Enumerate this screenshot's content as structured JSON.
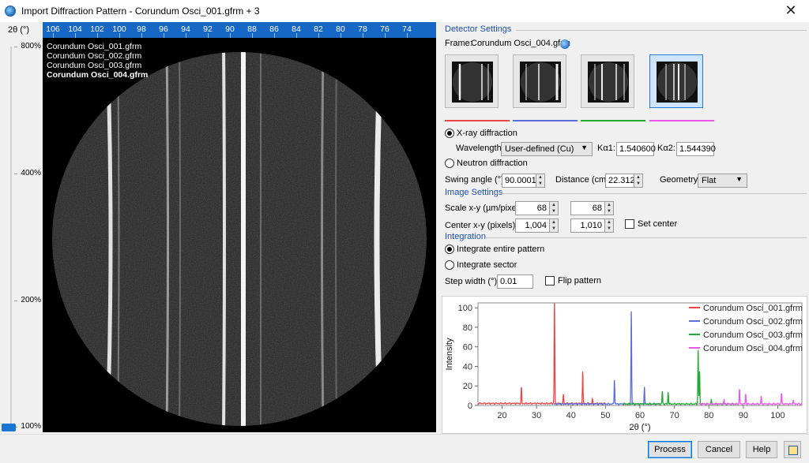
{
  "window": {
    "title": "Import Diffraction Pattern - Corundum Osci_001.gfrm + 3",
    "close": "✕"
  },
  "left_panel": {
    "angle_label": "2θ (°)",
    "zoom_ticks": [
      "800%",
      "400%",
      "200%",
      "100%"
    ],
    "ruler_ticks": [
      "106",
      "104",
      "102",
      "100",
      "98",
      "96",
      "94",
      "92",
      "90",
      "88",
      "86",
      "84",
      "82",
      "80",
      "78",
      "76",
      "74"
    ],
    "files": [
      "Corundum Osci_001.gfrm",
      "Corundum Osci_002.gfrm",
      "Corundum Osci_003.gfrm",
      "Corundum Osci_004.gfrm"
    ],
    "active_file_index": 3
  },
  "detector": {
    "section": "Detector Settings",
    "frame_label": "Frame:",
    "frame_name": "Corundum Osci_004.gfrm",
    "thumb_colors": [
      "#ee4444",
      "#5a6de0",
      "#22aa33",
      "#ee55ee"
    ],
    "selected_thumb": 3,
    "xray_label": "X-ray diffraction",
    "wavelength_label": "Wavelength:",
    "wavelength_value": "User-defined (Cu)",
    "ka1_label": "Kα1:",
    "ka1_value": "1.540600",
    "ka2_label": "Kα2:",
    "ka2_value": "1.544390",
    "neutron_label": "Neutron diffraction",
    "swing_label": "Swing angle (°):",
    "swing_value": "90.0001",
    "distance_label": "Distance (cm):",
    "distance_value": "22.312",
    "geometry_label": "Geometry:",
    "geometry_value": "Flat"
  },
  "image_settings": {
    "section": "Image Settings",
    "scale_label": "Scale x-y (µm/pixel):",
    "scale_x": "68",
    "scale_y": "68",
    "center_label": "Center x-y (pixels):",
    "center_x": "1,004",
    "center_y": "1,010",
    "set_center_label": "Set center"
  },
  "integration": {
    "section": "Integration",
    "entire_label": "Integrate entire pattern",
    "sector_label": "Integrate sector",
    "step_label": "Step width (°):",
    "step_value": "0.01",
    "flip_label": "Flip pattern"
  },
  "buttons": {
    "process": "Process",
    "cancel": "Cancel",
    "help": "Help"
  },
  "chart_data": {
    "type": "line",
    "xlabel": "2θ (°)",
    "ylabel": "Intensity",
    "xlim": [
      13,
      107
    ],
    "ylim": [
      0,
      105
    ],
    "x_ticks": [
      "20",
      "30",
      "40",
      "50",
      "60",
      "70",
      "80",
      "90",
      "100"
    ],
    "y_ticks": [
      "0",
      "20",
      "40",
      "60",
      "80",
      "100"
    ],
    "legend_position": "top-right",
    "series": [
      {
        "name": "Corundum Osci_001.gfrm",
        "color": "#ee4444",
        "range": [
          13,
          50
        ],
        "baseline": 2,
        "peaks": [
          [
            25.6,
            16
          ],
          [
            35.2,
            105
          ],
          [
            37.8,
            9
          ],
          [
            43.4,
            33
          ],
          [
            46.2,
            4
          ]
        ]
      },
      {
        "name": "Corundum Osci_002.gfrm",
        "color": "#5a6de0",
        "range": [
          35,
          66
        ],
        "baseline": 1.5,
        "peaks": [
          [
            52.6,
            25
          ],
          [
            57.5,
            95
          ],
          [
            61.3,
            18
          ],
          [
            66.5,
            4
          ]
        ]
      },
      {
        "name": "Corundum Osci_003.gfrm",
        "color": "#22aa33",
        "range": [
          55,
          88
        ],
        "baseline": 1.5,
        "peaks": [
          [
            66.5,
            13
          ],
          [
            68.2,
            12
          ],
          [
            76.9,
            55
          ],
          [
            77.3,
            33
          ],
          [
            80.7,
            4
          ]
        ]
      },
      {
        "name": "Corundum Osci_004.gfrm",
        "color": "#ee55ee",
        "range": [
          77,
          107
        ],
        "baseline": 1.5,
        "peaks": [
          [
            84.4,
            4
          ],
          [
            88.9,
            15
          ],
          [
            90.7,
            10
          ],
          [
            95.2,
            8
          ],
          [
            101.1,
            11
          ],
          [
            104.5,
            4
          ]
        ]
      }
    ]
  }
}
